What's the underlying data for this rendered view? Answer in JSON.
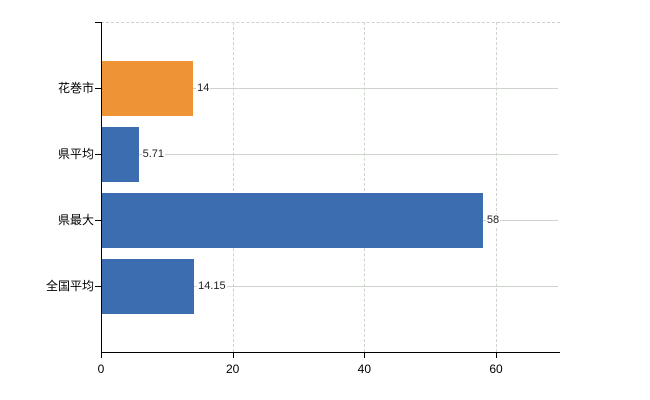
{
  "chart_data": {
    "type": "bar",
    "orientation": "horizontal",
    "title": "",
    "xlabel": "",
    "ylabel": "",
    "categories": [
      "花巻市",
      "県平均",
      "県最大",
      "全国平均"
    ],
    "values": [
      14,
      5.71,
      58,
      14.15
    ],
    "value_labels": [
      "14",
      "5.71",
      "58",
      "14.15"
    ],
    "bar_colors": [
      "#ef9337",
      "#3c6db0",
      "#3c6db0",
      "#3c6db0"
    ],
    "x_ticks": [
      0,
      20,
      40,
      60
    ],
    "x_tick_labels": [
      "0",
      "20",
      "40",
      "60"
    ],
    "xlim": [
      0,
      70
    ],
    "grid": true,
    "legend": false
  },
  "colors": {
    "axis": "#000000",
    "gridline": "#ccd4cc",
    "text": "#000000",
    "value_text": "#222222",
    "background": "#ffffff",
    "highlight_bar": "#ef9337",
    "default_bar": "#3c6db0"
  }
}
